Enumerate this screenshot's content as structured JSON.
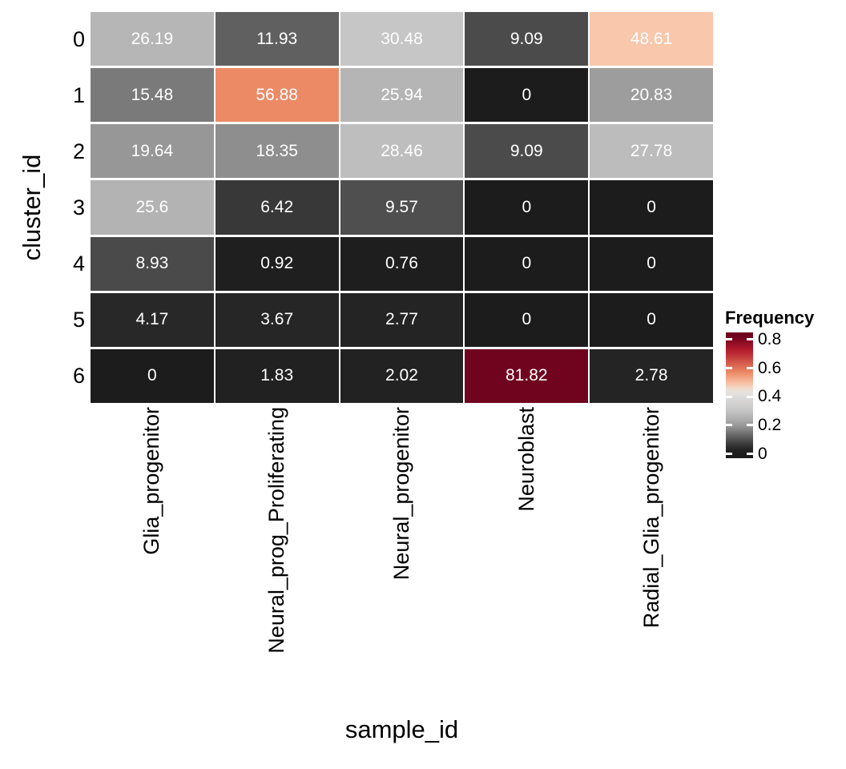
{
  "chart_data": {
    "type": "heatmap",
    "title": "",
    "xlabel": "sample_id",
    "ylabel": "cluster_id",
    "x_categories": [
      "Glia_progenitor",
      "Neural_prog_Proliferating",
      "Neural_progenitor",
      "Neuroblast",
      "Radial_Glia_progenitor"
    ],
    "y_categories": [
      "0",
      "1",
      "2",
      "3",
      "4",
      "5",
      "6"
    ],
    "cell_labels": [
      [
        "26.19",
        "11.93",
        "30.48",
        "9.09",
        "48.61"
      ],
      [
        "15.48",
        "56.88",
        "25.94",
        "0",
        "20.83"
      ],
      [
        "19.64",
        "18.35",
        "28.46",
        "9.09",
        "27.78"
      ],
      [
        "25.6",
        "6.42",
        "9.57",
        "0",
        "0"
      ],
      [
        "8.93",
        "0.92",
        "0.76",
        "0",
        "0"
      ],
      [
        "4.17",
        "3.67",
        "2.77",
        "0",
        "0"
      ],
      [
        "0",
        "1.83",
        "2.02",
        "81.82",
        "2.78"
      ]
    ],
    "values_percent": [
      [
        26.19,
        11.93,
        30.48,
        9.09,
        48.61
      ],
      [
        15.48,
        56.88,
        25.94,
        0,
        20.83
      ],
      [
        19.64,
        18.35,
        28.46,
        9.09,
        27.78
      ],
      [
        25.6,
        6.42,
        9.57,
        0,
        0
      ],
      [
        8.93,
        0.92,
        0.76,
        0,
        0
      ],
      [
        4.17,
        3.67,
        2.77,
        0,
        0
      ],
      [
        0,
        1.83,
        2.02,
        81.82,
        2.78
      ]
    ],
    "legend": {
      "title": "Frequency",
      "tick_labels": [
        "0.8",
        "0.6",
        "0.4",
        "0.2",
        "0"
      ],
      "tick_values": [
        0.8,
        0.6,
        0.4,
        0.2,
        0
      ],
      "bar_value_range": [
        -0.03,
        0.85
      ]
    },
    "color_scale": {
      "domain": [
        0,
        0.8182
      ],
      "stops": [
        [
          0.0,
          "#1c1c1c"
        ],
        [
          0.04,
          "#272727"
        ],
        [
          0.0909,
          "#4b4b4b"
        ],
        [
          0.1548,
          "#7a7a7a"
        ],
        [
          0.1964,
          "#979797"
        ],
        [
          0.2619,
          "#b6b6b6"
        ],
        [
          0.3048,
          "#c6c6c6"
        ],
        [
          0.4,
          "#dddcda"
        ],
        [
          0.44,
          "#eae5e0"
        ],
        [
          0.4861,
          "#f8c7ac"
        ],
        [
          0.5688,
          "#ec8a66"
        ],
        [
          0.63,
          "#d6604d"
        ],
        [
          0.73,
          "#b2182b"
        ],
        [
          0.8182,
          "#70041f"
        ]
      ]
    },
    "cell_text_color": "#ffffff",
    "background_color": "#ffffff",
    "axis_text_color": "#000000",
    "grid": false,
    "legend_position": "right"
  }
}
